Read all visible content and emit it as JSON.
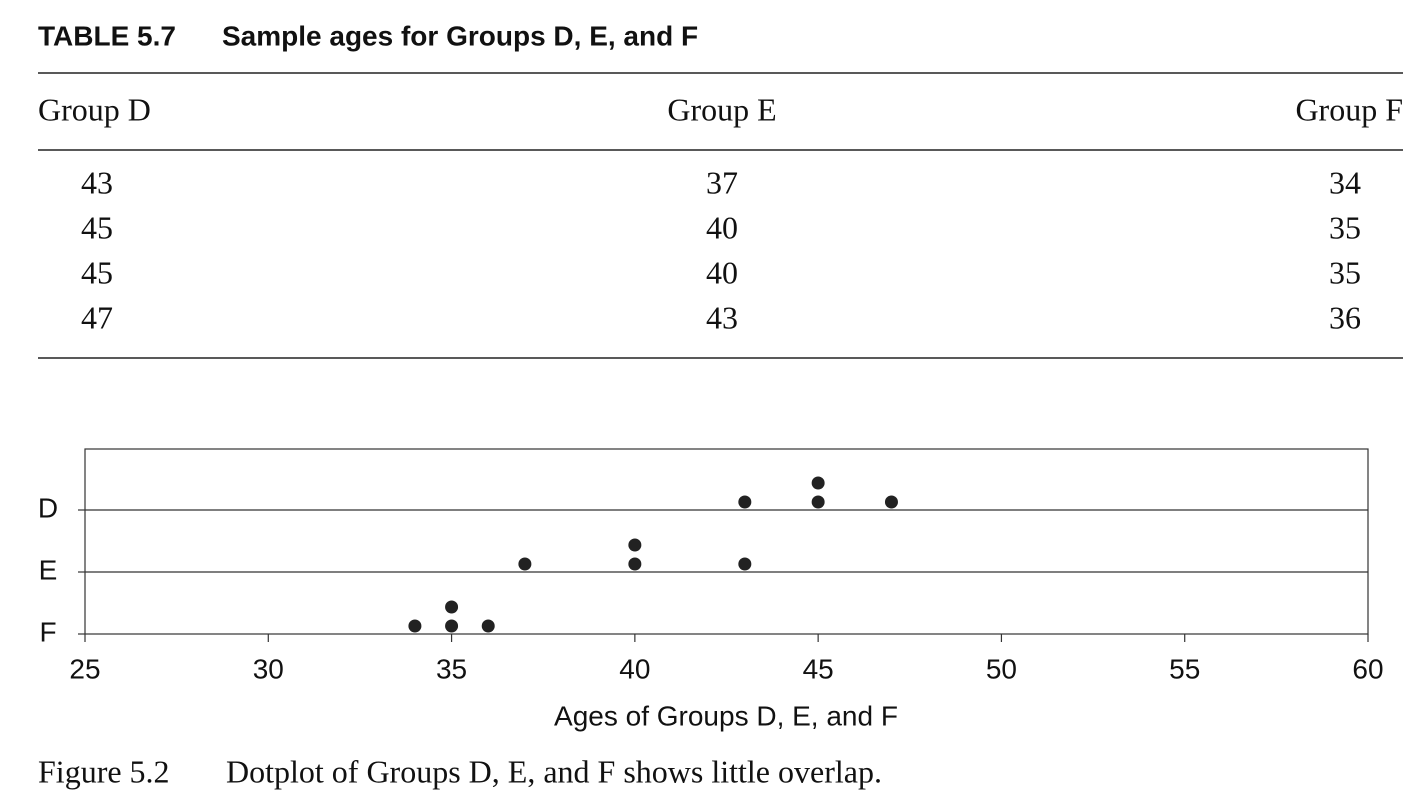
{
  "table": {
    "label": "TABLE 5.7",
    "title": "Sample ages for Groups D, E, and F",
    "columns": [
      "Group D",
      "Group E",
      "Group F"
    ],
    "rows": [
      [
        43,
        37,
        34
      ],
      [
        45,
        40,
        35
      ],
      [
        45,
        40,
        35
      ],
      [
        47,
        43,
        36
      ]
    ]
  },
  "chart_data": {
    "type": "dotplot",
    "categories": [
      "D",
      "E",
      "F"
    ],
    "values": [
      [
        43,
        45,
        45,
        47
      ],
      [
        37,
        40,
        40,
        43
      ],
      [
        34,
        35,
        35,
        36
      ]
    ],
    "color": "#222222",
    "xlim": [
      25,
      60
    ],
    "xticks": [
      25,
      30,
      35,
      40,
      45,
      50,
      55,
      60
    ],
    "xlabel": "Ages of Groups D, E, and F",
    "grid": true
  },
  "caption": {
    "label": "Figure 5.2",
    "text": "Dotplot of Groups D, E, and F shows little overlap."
  }
}
